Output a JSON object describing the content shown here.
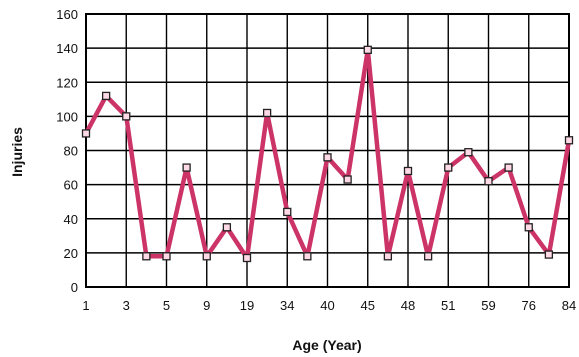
{
  "chart_data": {
    "type": "line",
    "title": "",
    "xlabel": "Age (Year)",
    "ylabel": "Injuries",
    "ylim": [
      0,
      160
    ],
    "y_ticks": [
      0,
      20,
      40,
      60,
      80,
      100,
      120,
      140,
      160
    ],
    "x_tick_labels": [
      "1",
      "3",
      "5",
      "9",
      "19",
      "34",
      "40",
      "45",
      "48",
      "51",
      "59",
      "76",
      "84"
    ],
    "grid": true,
    "legend": "none",
    "line_color": "#cc3366",
    "marker": "square",
    "series": [
      {
        "values": [
          90,
          112,
          100,
          18,
          18,
          70,
          18,
          35,
          17,
          102,
          44,
          18,
          76,
          63,
          139,
          18,
          68,
          18,
          70,
          79,
          62,
          70,
          35,
          19,
          86
        ]
      }
    ]
  }
}
